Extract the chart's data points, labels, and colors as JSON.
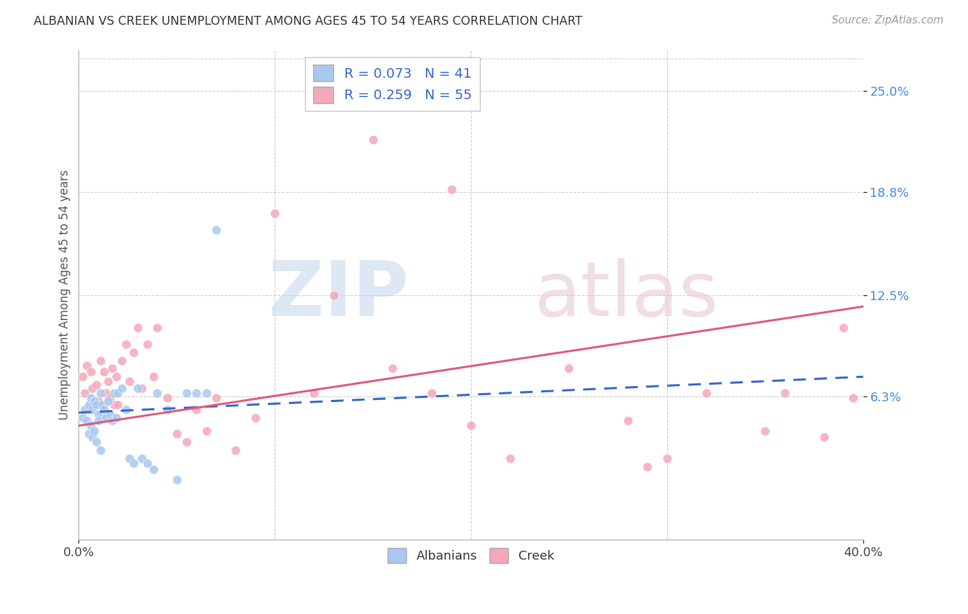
{
  "title": "ALBANIAN VS CREEK UNEMPLOYMENT AMONG AGES 45 TO 54 YEARS CORRELATION CHART",
  "source": "Source: ZipAtlas.com",
  "ylabel": "Unemployment Among Ages 45 to 54 years",
  "albanian_R": 0.073,
  "albanian_N": 41,
  "creek_R": 0.259,
  "creek_N": 55,
  "albanian_color": "#a8c8f0",
  "creek_color": "#f4a8b8",
  "albanian_line_color": "#3366cc",
  "creek_line_color": "#e05878",
  "background_color": "#ffffff",
  "xlim": [
    0.0,
    0.4
  ],
  "ylim": [
    -0.025,
    0.275
  ],
  "yticks": [
    0.063,
    0.125,
    0.188,
    0.25
  ],
  "ytick_labels": [
    "6.3%",
    "12.5%",
    "18.8%",
    "25.0%"
  ],
  "xticks": [
    0.0,
    0.4
  ],
  "xtick_labels": [
    "0.0%",
    "40.0%"
  ],
  "alb_line_x0": 0.0,
  "alb_line_y0": 0.053,
  "alb_line_x1": 0.4,
  "alb_line_y1": 0.075,
  "creek_line_x0": 0.0,
  "creek_line_y0": 0.045,
  "creek_line_x1": 0.4,
  "creek_line_y1": 0.118,
  "albanian_x": [
    0.002,
    0.003,
    0.004,
    0.005,
    0.005,
    0.006,
    0.006,
    0.007,
    0.007,
    0.008,
    0.008,
    0.009,
    0.009,
    0.01,
    0.01,
    0.011,
    0.011,
    0.012,
    0.013,
    0.014,
    0.015,
    0.016,
    0.017,
    0.018,
    0.019,
    0.02,
    0.022,
    0.024,
    0.026,
    0.028,
    0.03,
    0.032,
    0.035,
    0.038,
    0.04,
    0.045,
    0.05,
    0.055,
    0.06,
    0.065,
    0.07
  ],
  "albanian_y": [
    0.05,
    0.055,
    0.048,
    0.058,
    0.04,
    0.062,
    0.045,
    0.055,
    0.038,
    0.06,
    0.042,
    0.058,
    0.035,
    0.052,
    0.048,
    0.065,
    0.03,
    0.058,
    0.055,
    0.05,
    0.06,
    0.052,
    0.048,
    0.065,
    0.05,
    0.065,
    0.068,
    0.055,
    0.025,
    0.022,
    0.068,
    0.025,
    0.022,
    0.018,
    0.065,
    0.055,
    0.012,
    0.065,
    0.065,
    0.065,
    0.165
  ],
  "creek_x": [
    0.002,
    0.003,
    0.004,
    0.005,
    0.006,
    0.007,
    0.008,
    0.009,
    0.01,
    0.011,
    0.012,
    0.013,
    0.014,
    0.015,
    0.016,
    0.017,
    0.018,
    0.019,
    0.02,
    0.022,
    0.024,
    0.026,
    0.028,
    0.03,
    0.032,
    0.035,
    0.038,
    0.04,
    0.045,
    0.05,
    0.055,
    0.06,
    0.065,
    0.07,
    0.08,
    0.09,
    0.1,
    0.12,
    0.15,
    0.18,
    0.2,
    0.22,
    0.25,
    0.28,
    0.3,
    0.32,
    0.35,
    0.36,
    0.38,
    0.39,
    0.13,
    0.16,
    0.19,
    0.395,
    0.29
  ],
  "creek_y": [
    0.075,
    0.065,
    0.082,
    0.055,
    0.078,
    0.068,
    0.058,
    0.07,
    0.06,
    0.085,
    0.052,
    0.078,
    0.065,
    0.072,
    0.062,
    0.08,
    0.058,
    0.075,
    0.058,
    0.085,
    0.095,
    0.072,
    0.09,
    0.105,
    0.068,
    0.095,
    0.075,
    0.105,
    0.062,
    0.04,
    0.035,
    0.055,
    0.042,
    0.062,
    0.03,
    0.05,
    0.175,
    0.065,
    0.22,
    0.065,
    0.045,
    0.025,
    0.08,
    0.048,
    0.025,
    0.065,
    0.042,
    0.065,
    0.038,
    0.105,
    0.125,
    0.08,
    0.19,
    0.062,
    0.02
  ]
}
